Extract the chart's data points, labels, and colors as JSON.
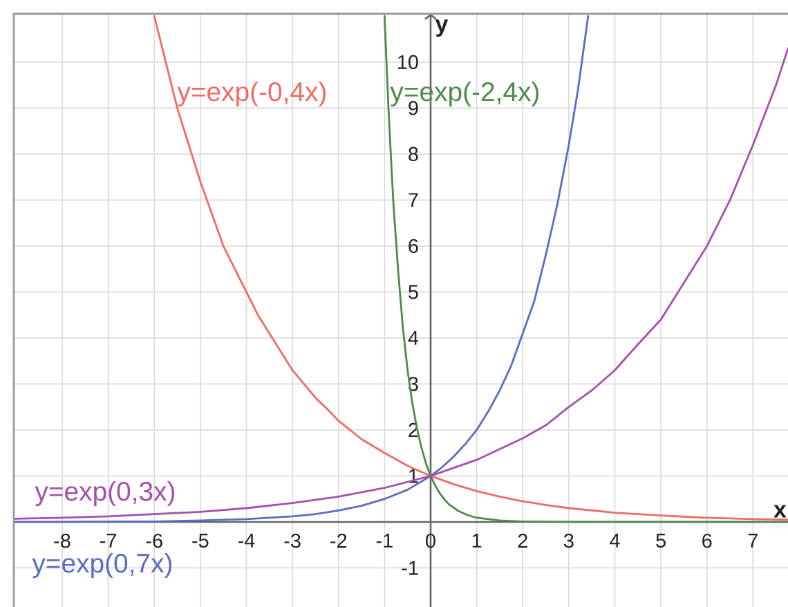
{
  "chart_data": {
    "type": "line",
    "xlabel": "x",
    "ylabel": "y",
    "xlim": [
      -9.05,
      7.76
    ],
    "ylim": [
      -1.85,
      11.05
    ],
    "xticks": [
      -8,
      -7,
      -6,
      -5,
      -4,
      -3,
      -2,
      -1,
      0,
      1,
      2,
      3,
      4,
      5,
      6,
      7
    ],
    "yticks": [
      -1,
      1,
      2,
      3,
      4,
      5,
      6,
      7,
      8,
      9,
      10
    ],
    "grid": true,
    "series": [
      {
        "name": "y=exp(-0,4x)",
        "color": "#f26b63",
        "x": [
          -6.0,
          -5.75,
          -5.5,
          -5.25,
          -5.0,
          -4.75,
          -4.5,
          -4.25,
          -4.0,
          -3.75,
          -3.5,
          -3.25,
          -3.0,
          -2.75,
          -2.5,
          -2.25,
          -2.0,
          -1.75,
          -1.5,
          -1.25,
          -1.0,
          -0.5,
          0,
          0.5,
          1,
          1.5,
          2,
          2.5,
          3,
          4,
          5,
          6,
          7,
          7.76
        ],
        "values": [
          11.0,
          10.0,
          9.0,
          8.2,
          7.4,
          6.7,
          6.0,
          5.5,
          5.0,
          4.5,
          4.1,
          3.7,
          3.3,
          3.0,
          2.7,
          2.46,
          2.2,
          2.0,
          1.8,
          1.65,
          1.5,
          1.22,
          1,
          0.82,
          0.67,
          0.55,
          0.45,
          0.37,
          0.3,
          0.2,
          0.14,
          0.09,
          0.06,
          0.05
        ]
      },
      {
        "name": "y=exp(-2,4x)",
        "color": "#4f8a4c",
        "x": [
          -1.0,
          -0.92,
          -0.85,
          -0.8,
          -0.7,
          -0.6,
          -0.5,
          -0.4,
          -0.3,
          -0.2,
          -0.1,
          0,
          0.1,
          0.2,
          0.3,
          0.4,
          0.6,
          0.8,
          1.0,
          1.5,
          2.0,
          3.0,
          7.76
        ],
        "values": [
          11.0,
          9.1,
          7.7,
          6.8,
          5.4,
          4.2,
          3.3,
          2.6,
          2.05,
          1.62,
          1.27,
          1,
          0.79,
          0.62,
          0.49,
          0.38,
          0.24,
          0.15,
          0.09,
          0.03,
          0.01,
          0,
          0
        ]
      },
      {
        "name": "y=exp(0,7x)",
        "color": "#5b6cc4",
        "x": [
          -9.05,
          -8,
          -7,
          -6,
          -5,
          -4,
          -3.5,
          -3,
          -2.5,
          -2,
          -1.5,
          -1,
          -0.5,
          0,
          0.25,
          0.5,
          0.75,
          1,
          1.25,
          1.5,
          1.75,
          2,
          2.25,
          2.5,
          2.75,
          3,
          3.2,
          3.42
        ],
        "values": [
          0,
          0,
          0.01,
          0.01,
          0.03,
          0.06,
          0.09,
          0.12,
          0.17,
          0.25,
          0.35,
          0.5,
          0.7,
          1,
          1.19,
          1.42,
          1.69,
          2.0,
          2.4,
          2.86,
          3.4,
          4.1,
          4.8,
          5.8,
          6.9,
          8.2,
          9.4,
          11.0
        ]
      },
      {
        "name": "y=exp(0,3x)",
        "color": "#a550ad",
        "x": [
          -9.05,
          -8,
          -7,
          -6,
          -5,
          -4,
          -3,
          -2,
          -1,
          0,
          1,
          2,
          2.5,
          3,
          3.5,
          4,
          4.5,
          5,
          5.5,
          6,
          6.5,
          7,
          7.5,
          7.76
        ],
        "values": [
          0.07,
          0.09,
          0.12,
          0.17,
          0.22,
          0.3,
          0.41,
          0.55,
          0.74,
          1,
          1.35,
          1.82,
          2.1,
          2.5,
          2.86,
          3.3,
          3.86,
          4.4,
          5.2,
          6.0,
          7.0,
          8.2,
          9.5,
          10.3
        ]
      }
    ]
  }
}
